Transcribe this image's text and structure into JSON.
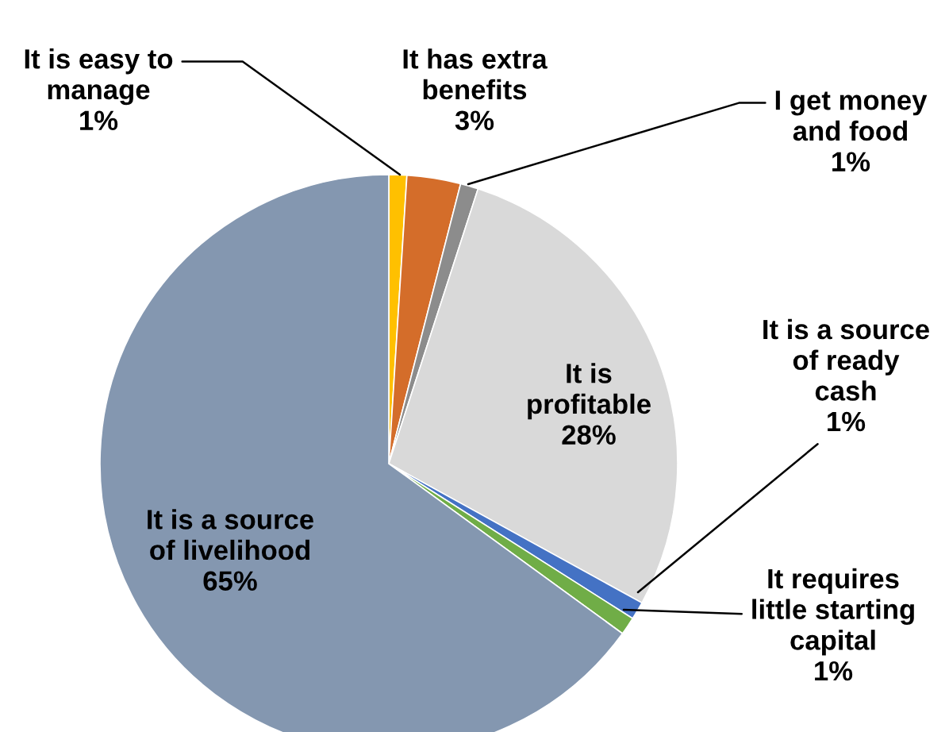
{
  "chart_data": {
    "type": "pie",
    "categories": [
      "It is easy to\nmanage",
      "It has extra\nbenefits",
      "I get money\nand food",
      "It is\nprofitable",
      "It is a source\nof ready\ncash",
      "It requires\nlittle starting\ncapital",
      "It is a source\nof livelihood"
    ],
    "values": [
      1,
      3,
      1,
      28,
      1,
      1,
      65
    ],
    "value_labels": [
      "1%",
      "3%",
      "1%",
      "28%",
      "1%",
      "1%",
      "65%"
    ],
    "colors": [
      "#ffc000",
      "#d46d2a",
      "#8c8c8c",
      "#d9d9d9",
      "#4472c4",
      "#70ad47",
      "#8497b0"
    ]
  }
}
